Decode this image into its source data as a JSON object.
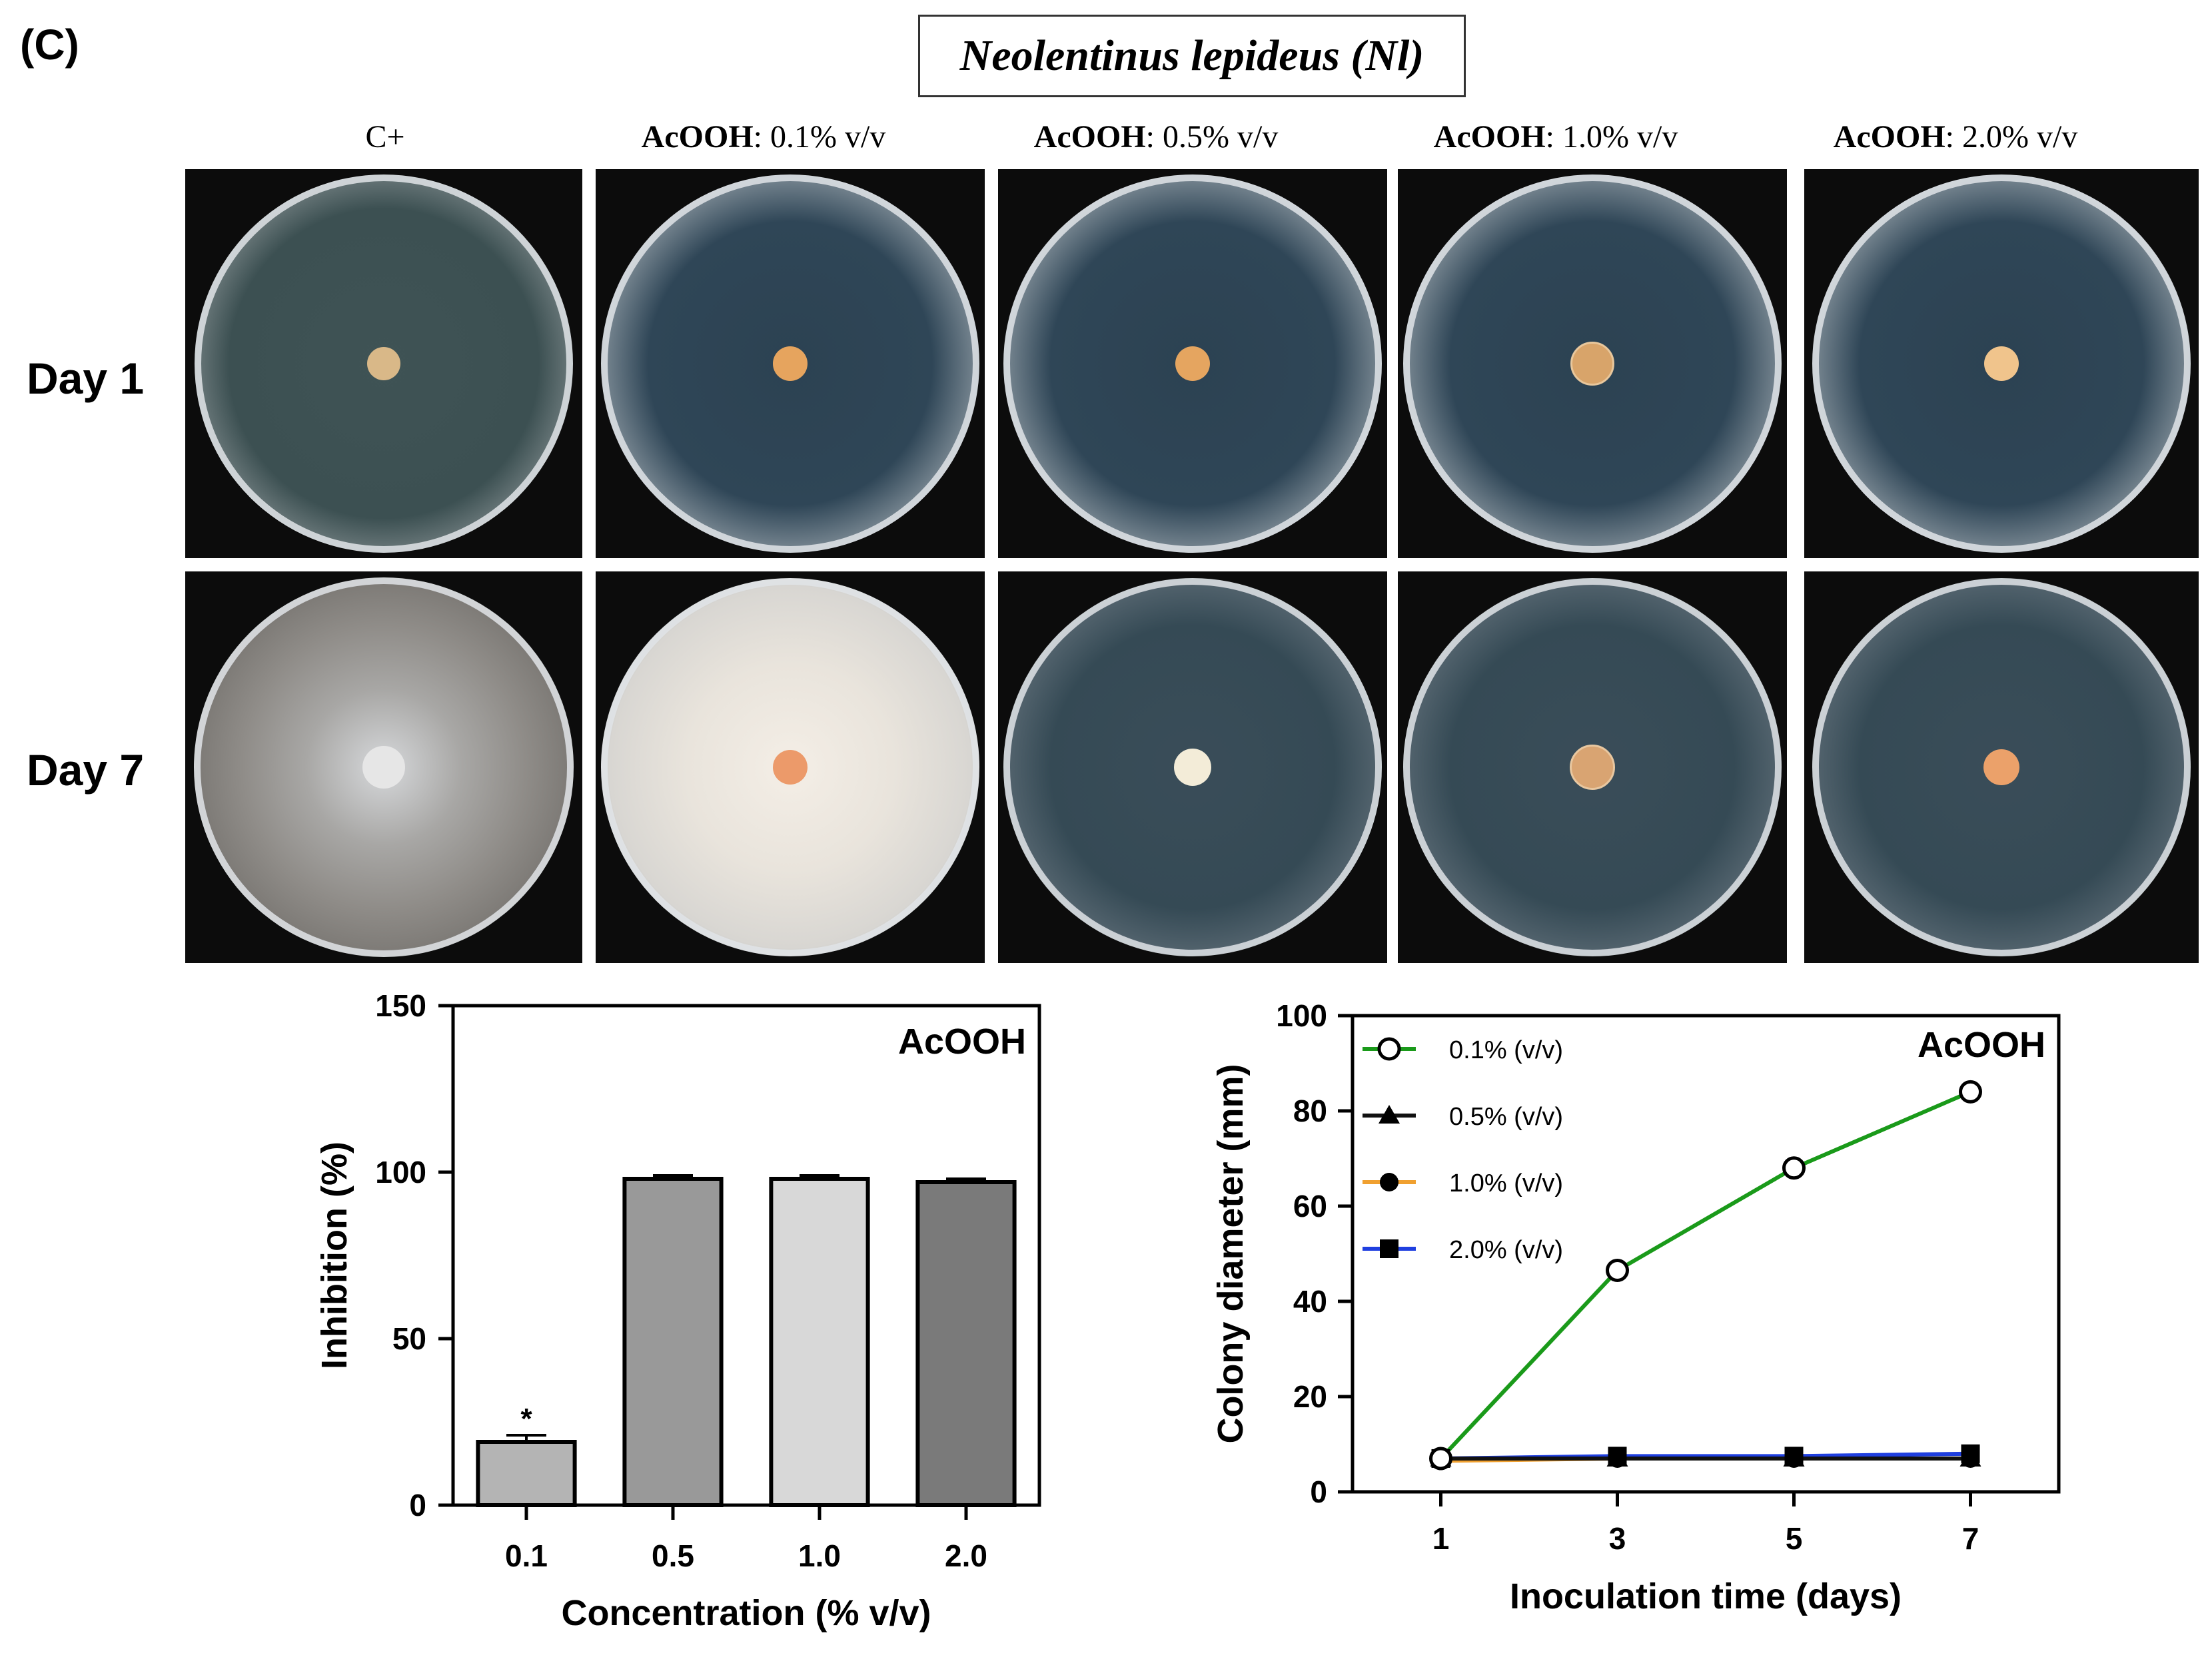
{
  "panel_label": "(C)",
  "species_title": "Neolentinus lepideus (Nl)",
  "columns": [
    {
      "bold": "",
      "rest": "C+"
    },
    {
      "bold": "AcOOH",
      "rest": ": 0.1% v/v"
    },
    {
      "bold": "AcOOH",
      "rest": ": 0.5% v/v"
    },
    {
      "bold": "AcOOH",
      "rest": ": 1.0% v/v"
    },
    {
      "bold": "AcOOH",
      "rest": ": 2.0% v/v"
    }
  ],
  "rows": [
    "Day 1",
    "Day 7"
  ],
  "colors": {
    "green": "#1a9a1a",
    "black": "#111111",
    "orange": "#f0a030",
    "blue": "#1f3fe0"
  },
  "chart_data": [
    {
      "type": "bar",
      "annotation": "AcOOH",
      "xlabel": "Concentration (% v/v)",
      "ylabel": "Inhibition (%)",
      "categories": [
        "0.1",
        "0.5",
        "1.0",
        "2.0"
      ],
      "values": [
        19,
        98,
        98,
        97
      ],
      "errors": [
        2,
        1,
        1,
        1
      ],
      "bar_colors": [
        "#b4b4b4",
        "#999999",
        "#d8d8d8",
        "#7a7a7a"
      ],
      "significance": [
        "*",
        "",
        "",
        ""
      ],
      "ylim": [
        0,
        150
      ],
      "yticks": [
        "0",
        "50",
        "100",
        "150"
      ]
    },
    {
      "type": "line",
      "annotation": "AcOOH",
      "xlabel": "Inoculation time (days)",
      "ylabel": "Colony diameter (mm)",
      "x": [
        1,
        3,
        5,
        7
      ],
      "xticks": [
        "1",
        "3",
        "5",
        "7"
      ],
      "yticks": [
        "0",
        "20",
        "40",
        "60",
        "80",
        "100"
      ],
      "ylim": [
        0,
        100
      ],
      "legend_position": "top-left",
      "series": [
        {
          "name": "0.1% (v/v)",
          "values": [
            7,
            46.5,
            68,
            84
          ],
          "color": "#1a9a1a",
          "marker": "open-circle"
        },
        {
          "name": "0.5% (v/v)",
          "values": [
            7,
            7,
            7,
            7
          ],
          "color": "#111111",
          "marker": "triangle"
        },
        {
          "name": "1.0% (v/v)",
          "values": [
            6.5,
            7,
            7,
            7
          ],
          "color": "#f0a030",
          "marker": "filled-circle"
        },
        {
          "name": "2.0% (v/v)",
          "values": [
            7,
            7.5,
            7.5,
            8
          ],
          "color": "#1f3fe0",
          "marker": "square"
        }
      ]
    }
  ]
}
